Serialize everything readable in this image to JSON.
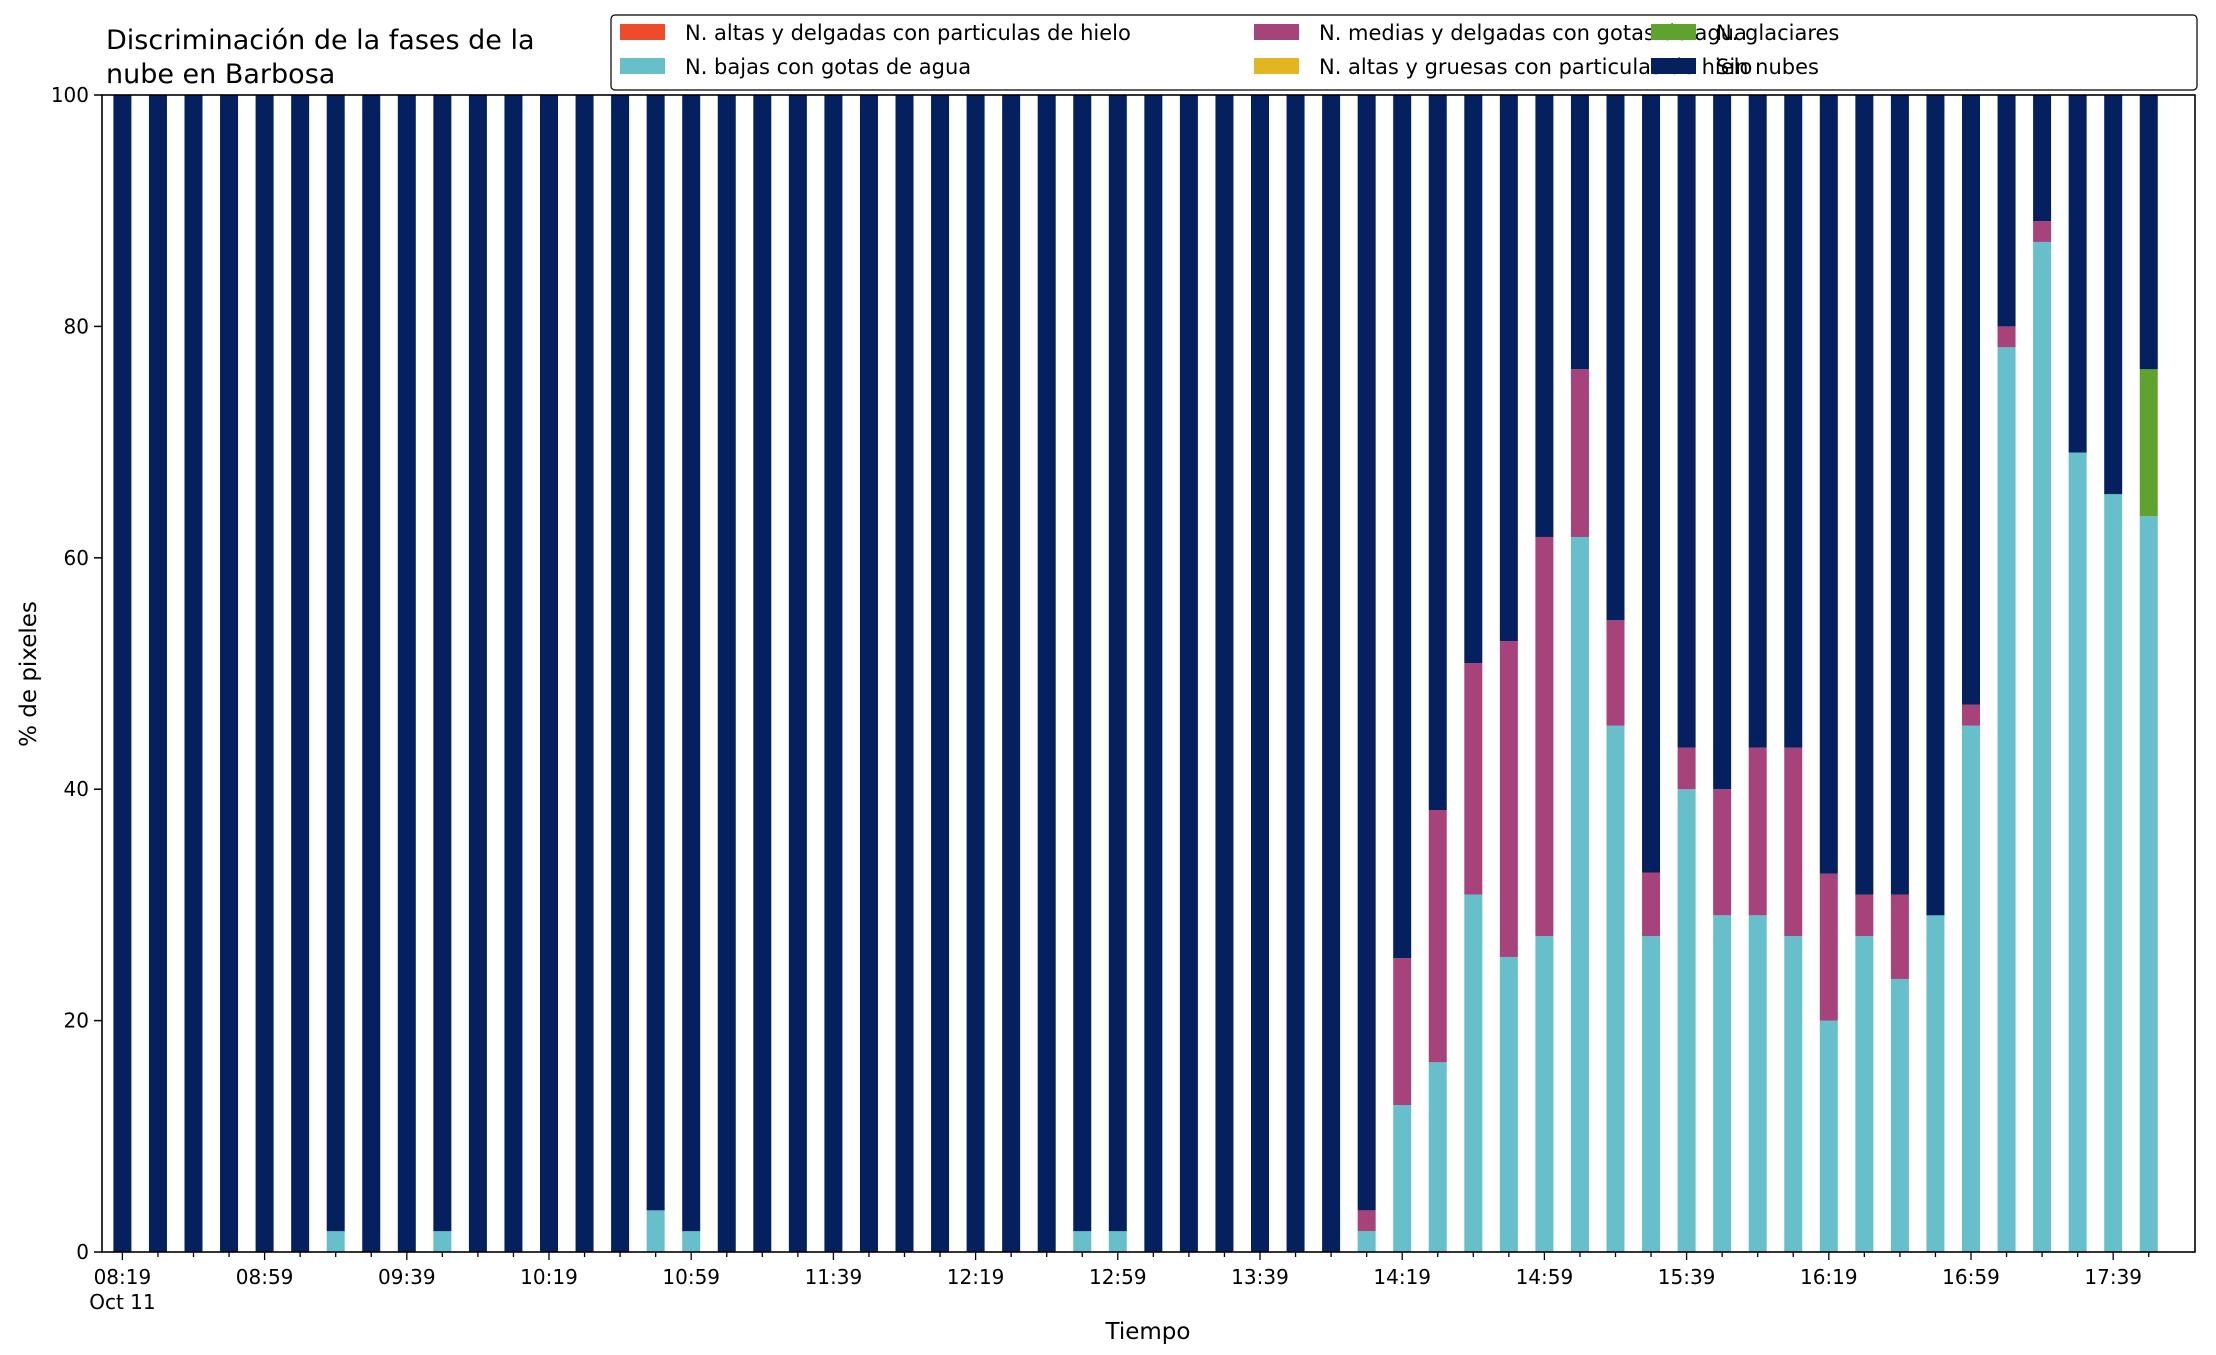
{
  "chart_data": {
    "type": "bar",
    "stacked": true,
    "title_lines": [
      "Discriminación de la fases de la",
      "nube en Barbosa"
    ],
    "xlabel": "Tiempo",
    "ylabel": "% de pixeles",
    "ylim": [
      0,
      100
    ],
    "yticks": [
      "0",
      "20",
      "40",
      "60",
      "80",
      "100"
    ],
    "xtick_labels": [
      {
        "index": 0,
        "label": "08:19",
        "sublabel": "Oct 11"
      },
      {
        "index": 4,
        "label": "08:59"
      },
      {
        "index": 8,
        "label": "09:39"
      },
      {
        "index": 12,
        "label": "10:19"
      },
      {
        "index": 16,
        "label": "10:59"
      },
      {
        "index": 20,
        "label": "11:39"
      },
      {
        "index": 24,
        "label": "12:19"
      },
      {
        "index": 28,
        "label": "12:59"
      },
      {
        "index": 32,
        "label": "13:39"
      },
      {
        "index": 36,
        "label": "14:19"
      },
      {
        "index": 40,
        "label": "14:59"
      },
      {
        "index": 44,
        "label": "15:39"
      },
      {
        "index": 48,
        "label": "16:19"
      },
      {
        "index": 52,
        "label": "16:59"
      },
      {
        "index": 56,
        "label": "17:39"
      }
    ],
    "x": [
      "08:19",
      "08:29",
      "08:39",
      "08:49",
      "08:59",
      "09:09",
      "09:19",
      "09:29",
      "09:39",
      "09:49",
      "09:59",
      "10:09",
      "10:19",
      "10:29",
      "10:39",
      "10:49",
      "10:59",
      "11:09",
      "11:19",
      "11:29",
      "11:39",
      "11:49",
      "11:59",
      "12:09",
      "12:19",
      "12:29",
      "12:39",
      "12:49",
      "12:59",
      "13:09",
      "13:19",
      "13:29",
      "13:39",
      "13:49",
      "13:59",
      "14:09",
      "14:19",
      "14:29",
      "14:39",
      "14:49",
      "14:59",
      "15:09",
      "15:19",
      "15:29",
      "15:39",
      "15:49",
      "15:59",
      "16:09",
      "16:19",
      "16:29",
      "16:39",
      "16:49",
      "16:59",
      "17:09",
      "17:19",
      "17:29",
      "17:39",
      "17:49"
    ],
    "legend_position": "top-right",
    "legend": [
      {
        "name": "N. altas y delgadas con particulas de hielo",
        "color": "#ee4a2c"
      },
      {
        "name": "N. bajas con gotas de agua",
        "color": "#67bfcb"
      },
      {
        "name": "N. medias y delgadas con gotas de agua",
        "color": "#a5437a"
      },
      {
        "name": "N. altas y gruesas con particulas de hielo",
        "color": "#e3b522"
      },
      {
        "name": "N. glaciares",
        "color": "#5fa22e"
      },
      {
        "name": "Sin nubes",
        "color": "#04205f"
      }
    ],
    "series": [
      {
        "name": "N. altas y delgadas con particulas de hielo",
        "color": "#ee4a2c",
        "values": [
          0,
          0,
          0,
          0,
          0,
          0,
          0,
          0,
          0,
          0,
          0,
          0,
          0,
          0,
          0,
          0,
          0,
          0,
          0,
          0,
          0,
          0,
          0,
          0,
          0,
          0,
          0,
          0,
          0,
          0,
          0,
          0,
          0,
          0,
          0,
          0,
          0,
          0,
          0,
          0,
          0,
          0,
          0,
          0,
          0,
          0,
          0,
          0,
          0,
          0,
          0,
          0,
          0,
          0,
          0,
          0,
          0,
          0
        ]
      },
      {
        "name": "N. altas y gruesas con particulas de hielo",
        "color": "#e3b522",
        "values": [
          0,
          0,
          0,
          0,
          0,
          0,
          0,
          0,
          0,
          0,
          0,
          0,
          0,
          0,
          0,
          0,
          0,
          0,
          0,
          0,
          0,
          0,
          0,
          0,
          0,
          0,
          0,
          0,
          0,
          0,
          0,
          0,
          0,
          0,
          0,
          0,
          0,
          0,
          0,
          0,
          0,
          0,
          0,
          0,
          0,
          0,
          0,
          0,
          0,
          0,
          0,
          0,
          0,
          0,
          0,
          0,
          0,
          0
        ]
      },
      {
        "name": "N. bajas con gotas de agua",
        "color": "#67bfcb",
        "values": [
          0,
          0,
          0,
          0,
          0,
          0,
          1.8,
          0,
          0,
          1.8,
          0,
          0,
          0,
          0,
          0,
          3.6,
          1.8,
          0,
          0,
          0,
          0,
          0,
          0,
          0,
          0,
          0,
          0,
          1.8,
          1.8,
          0,
          0,
          0,
          0,
          0,
          0,
          1.8,
          12.7,
          16.4,
          30.9,
          25.5,
          27.3,
          61.8,
          45.5,
          27.3,
          40.0,
          29.1,
          29.1,
          27.3,
          20.0,
          27.3,
          23.6,
          29.1,
          45.5,
          78.2,
          87.3,
          69.1,
          65.5,
          63.6
        ]
      },
      {
        "name": "N. medias y delgadas con gotas de agua",
        "color": "#a5437a",
        "values": [
          0,
          0,
          0,
          0,
          0,
          0,
          0,
          0,
          0,
          0,
          0,
          0,
          0,
          0,
          0,
          0,
          0,
          0,
          0,
          0,
          0,
          0,
          0,
          0,
          0,
          0,
          0,
          0,
          0,
          0,
          0,
          0,
          0,
          0,
          0,
          1.8,
          12.7,
          21.8,
          20.0,
          27.3,
          34.5,
          14.5,
          9.1,
          5.5,
          3.6,
          10.9,
          14.5,
          16.3,
          12.7,
          3.6,
          7.3,
          0,
          1.8,
          1.8,
          1.8,
          0,
          0,
          0
        ]
      },
      {
        "name": "N. glaciares",
        "color": "#5fa22e",
        "values": [
          0,
          0,
          0,
          0,
          0,
          0,
          0,
          0,
          0,
          0,
          0,
          0,
          0,
          0,
          0,
          0,
          0,
          0,
          0,
          0,
          0,
          0,
          0,
          0,
          0,
          0,
          0,
          0,
          0,
          0,
          0,
          0,
          0,
          0,
          0,
          0,
          0,
          0,
          0,
          0,
          0,
          0,
          0,
          0,
          0,
          0,
          0,
          0,
          0,
          0,
          0,
          0,
          0,
          0,
          0,
          0,
          0,
          12.7
        ]
      },
      {
        "name": "Sin nubes",
        "color": "#04205f",
        "values": [
          100,
          100,
          100,
          100,
          100,
          100,
          98.2,
          100,
          100,
          98.2,
          100,
          100,
          100,
          100,
          100,
          96.4,
          98.2,
          100,
          100,
          100,
          100,
          100,
          100,
          100,
          100,
          100,
          100,
          98.2,
          98.2,
          100,
          100,
          100,
          100,
          100,
          100,
          96.4,
          74.6,
          61.8,
          49.1,
          47.2,
          38.2,
          23.7,
          45.4,
          67.2,
          56.4,
          60.0,
          56.4,
          56.4,
          67.3,
          69.1,
          69.1,
          70.9,
          52.7,
          20.0,
          10.9,
          30.9,
          34.5,
          23.7
        ]
      }
    ]
  }
}
